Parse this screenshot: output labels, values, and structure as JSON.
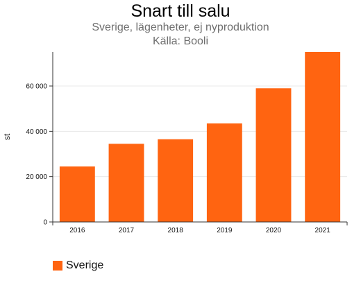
{
  "chart_data": {
    "type": "bar",
    "title": "Snart till salu",
    "subtitle": "Sverige, lägenheter, ej nyproduktion",
    "source": "Källa: Booli",
    "ylabel": "st",
    "xlabel": "",
    "categories": [
      "2016",
      "2017",
      "2018",
      "2019",
      "2020",
      "2021"
    ],
    "series": [
      {
        "name": "Sverige",
        "values": [
          24500,
          34500,
          36500,
          43500,
          59000,
          75000
        ]
      }
    ],
    "ylim": [
      0,
      75000
    ],
    "yticks": [
      0,
      20000,
      40000,
      60000
    ],
    "ytick_labels": [
      "0",
      "20 000",
      "40 000",
      "60 000"
    ],
    "grid": true,
    "legend_position": "bottom-left",
    "colors": {
      "bar": "#ff6411",
      "grid": "#e8e8e8",
      "axis": "#333333"
    }
  }
}
